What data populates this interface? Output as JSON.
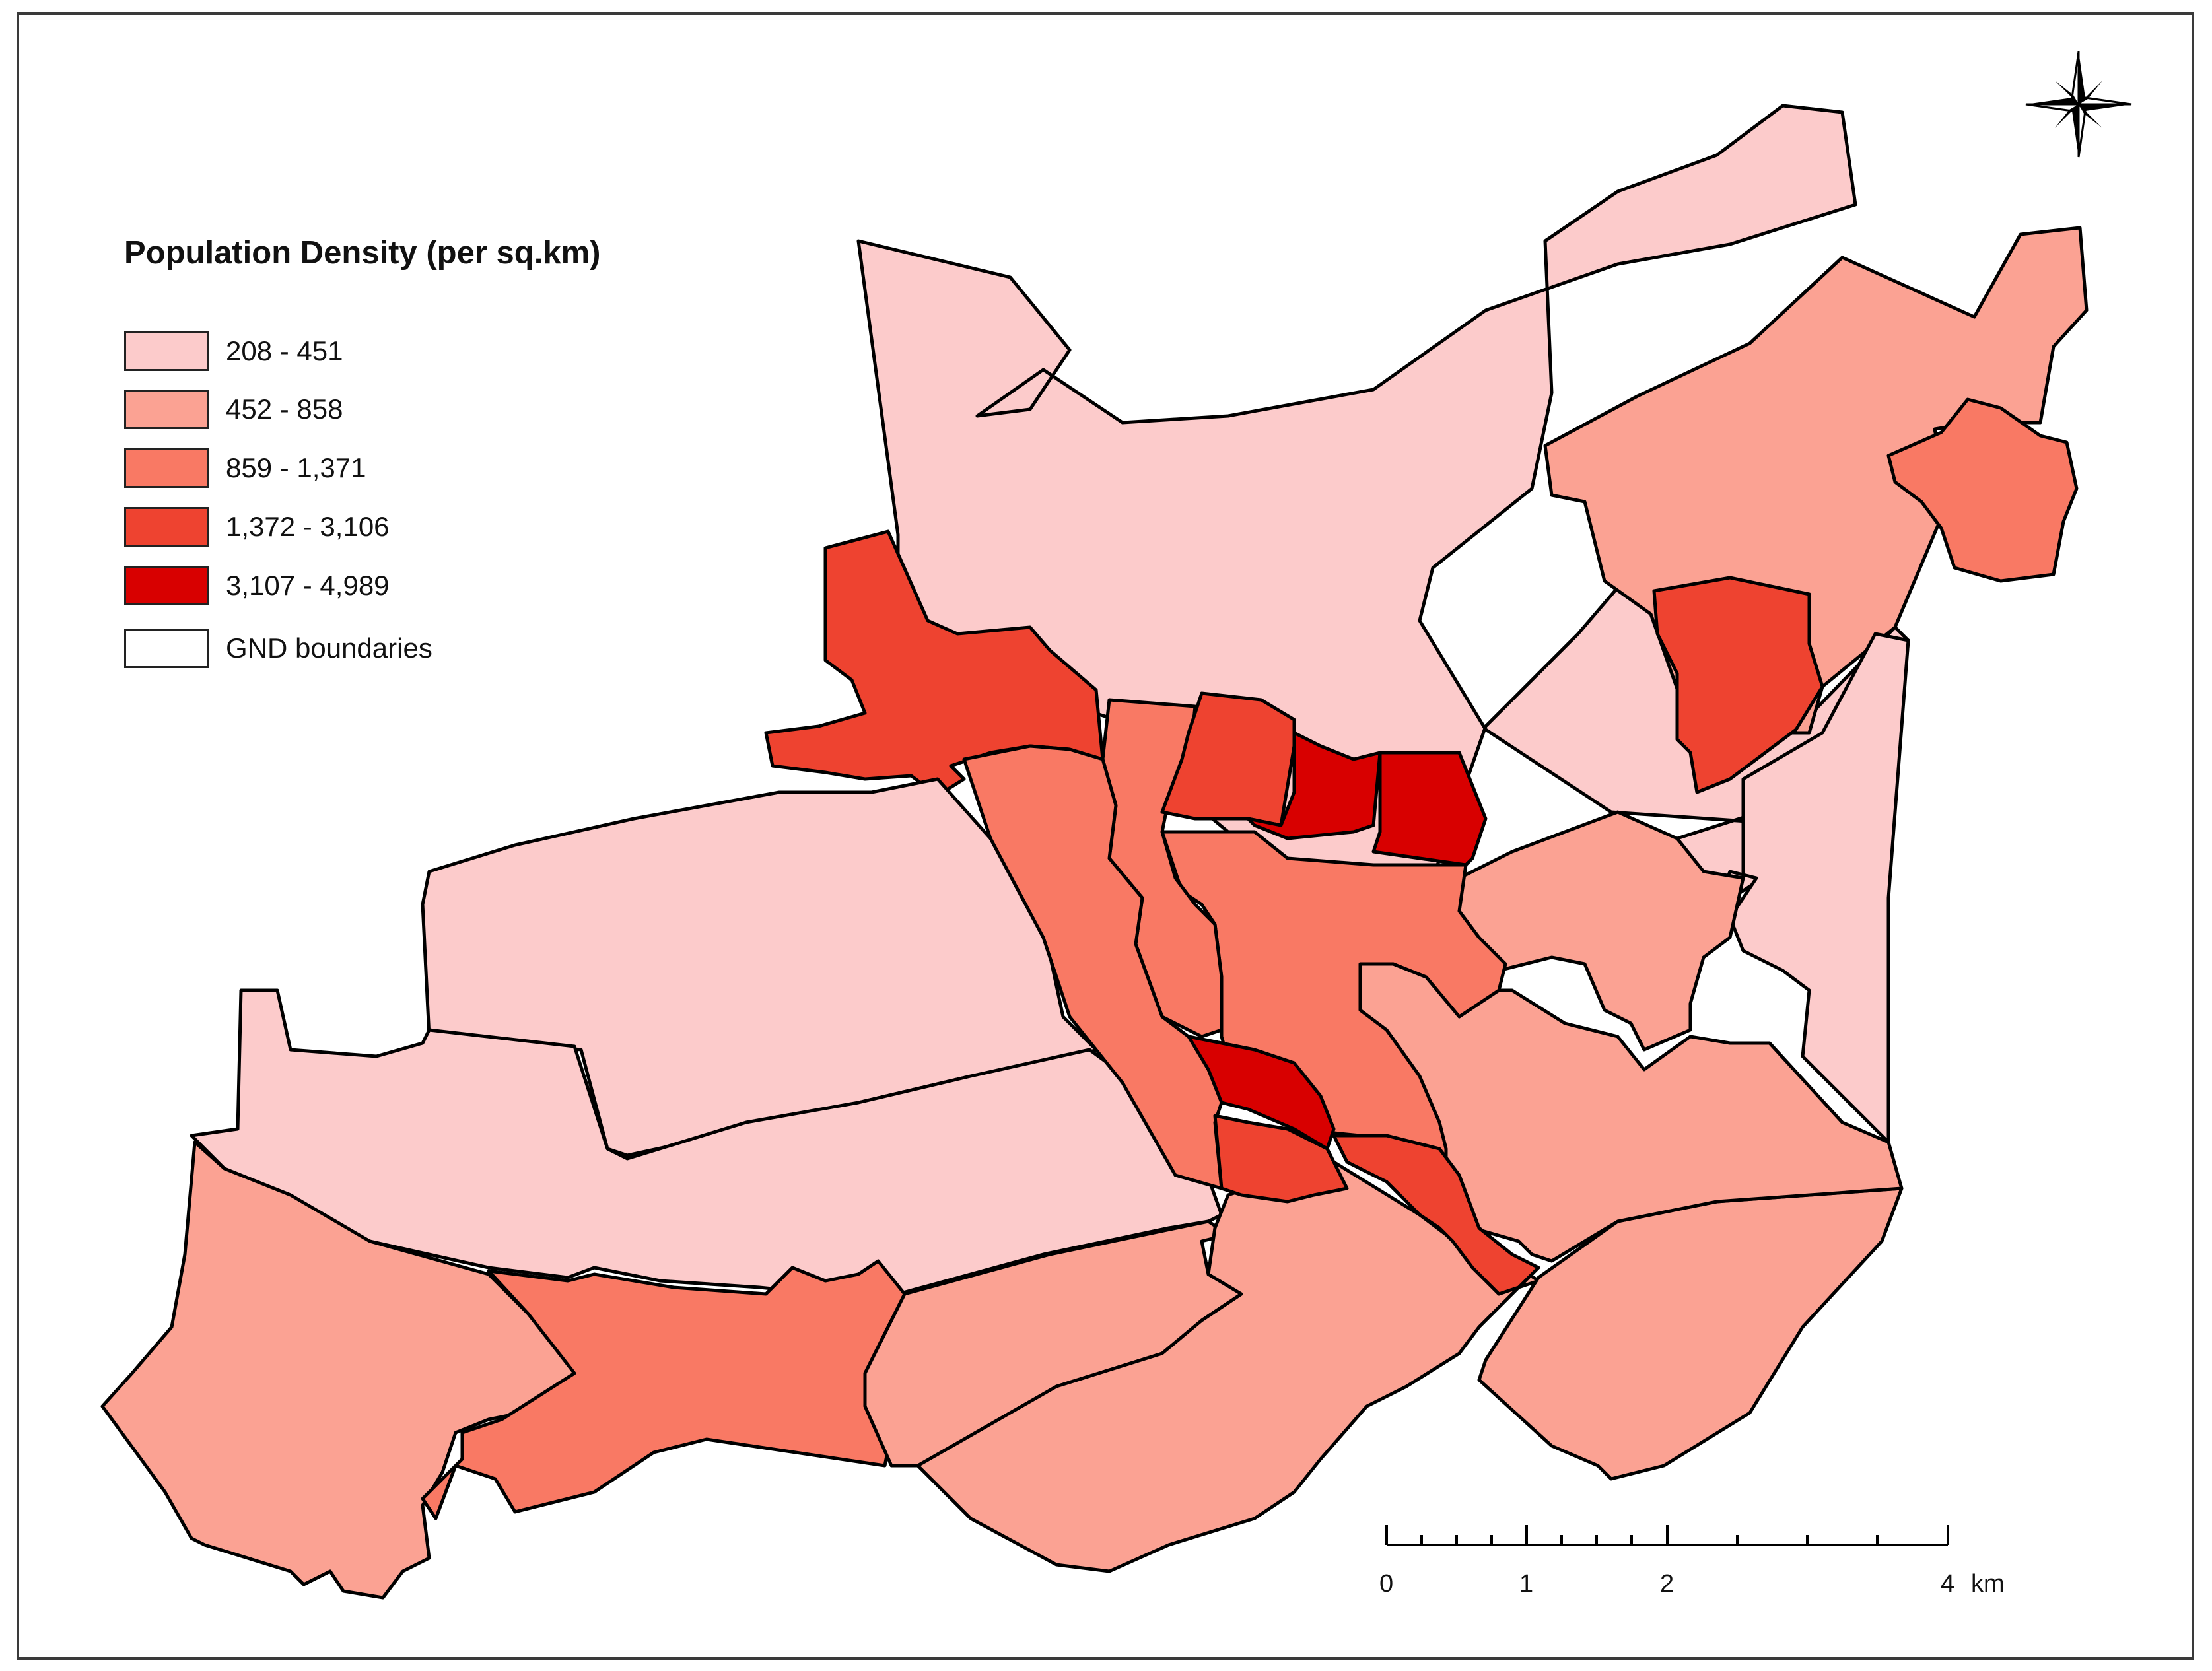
{
  "map": {
    "legend": {
      "title": "Population Density (per sq.km)",
      "classes": [
        {
          "label": "208 - 451",
          "color": "#fccbcb"
        },
        {
          "label": "452 - 858",
          "color": "#fba293"
        },
        {
          "label": "859 - 1,371",
          "color": "#f97964"
        },
        {
          "label": "1,372 - 3,106",
          "color": "#ee4330"
        },
        {
          "label": "3,107 - 4,989",
          "color": "#d80000"
        },
        {
          "label": "GND boundaries",
          "color": "#ffffff"
        }
      ]
    },
    "scale_bar": {
      "labels": [
        "0",
        "1",
        "2",
        "4"
      ],
      "unit": "km"
    },
    "compass": {
      "icon": "north-arrow-compass-icon"
    },
    "boundary_color": "#000000"
  }
}
